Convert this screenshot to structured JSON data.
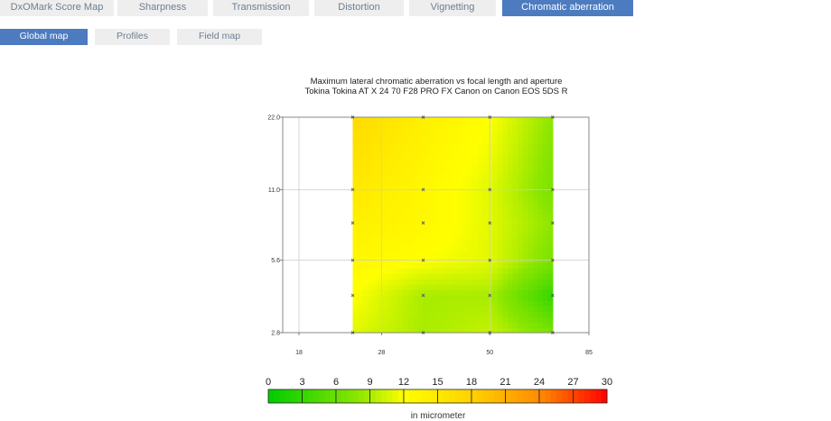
{
  "tabs": [
    {
      "label": "DxOMark Score Map",
      "active": false
    },
    {
      "label": "Sharpness",
      "active": false
    },
    {
      "label": "Transmission",
      "active": false
    },
    {
      "label": "Distortion",
      "active": false
    },
    {
      "label": "Vignetting",
      "active": false
    },
    {
      "label": "Chromatic aberration",
      "active": true
    }
  ],
  "subtabs": [
    {
      "label": "Global map",
      "active": true
    },
    {
      "label": "Profiles",
      "active": false
    },
    {
      "label": "Field map",
      "active": false
    }
  ],
  "colors": {
    "accent": "#4d7bbf",
    "tab_bg": "#eeeeee",
    "tab_text": "#6d7e91"
  },
  "chart_data": {
    "type": "heatmap",
    "title": "Maximum lateral chromatic aberration vs focal length and aperture",
    "subtitle": "Tokina Tokina AT X 24 70 F28 PRO FX Canon on Canon EOS 5DS R",
    "x_scale": "log",
    "x_ticks": [
      "18",
      "28",
      "50",
      "85"
    ],
    "x_range": [
      16.5,
      85
    ],
    "y_scale": "log",
    "y_ticks": [
      "2.8",
      "5.6",
      "11.0",
      "22.0"
    ],
    "y_range": [
      2.8,
      22
    ],
    "x": [
      24,
      35,
      50,
      70
    ],
    "y": [
      2.8,
      4,
      5.6,
      8,
      11,
      22
    ],
    "z": [
      [
        11,
        9,
        10,
        7
      ],
      [
        12,
        9,
        9,
        3
      ],
      [
        13,
        12,
        11,
        7
      ],
      [
        14,
        13,
        11,
        8
      ],
      [
        15,
        13,
        11,
        7
      ],
      [
        17,
        14,
        12,
        8
      ]
    ],
    "colorbar": {
      "ticks": [
        "0",
        "3",
        "6",
        "9",
        "12",
        "15",
        "18",
        "21",
        "24",
        "27",
        "30"
      ],
      "min": 0,
      "max": 30,
      "label": "in micrometer"
    },
    "grid": true
  }
}
